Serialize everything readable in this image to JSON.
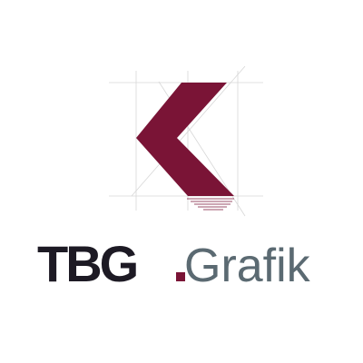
{
  "logo": {
    "brand": "TBG",
    "suffix": "Grafik",
    "colors": {
      "mark": "#7a1436",
      "brand_text": "#1d1a24",
      "suffix_text": "#5b6a72",
      "guides": "#d7d7d7",
      "background": "#ffffff"
    },
    "icon": "chevron-k-mark"
  }
}
